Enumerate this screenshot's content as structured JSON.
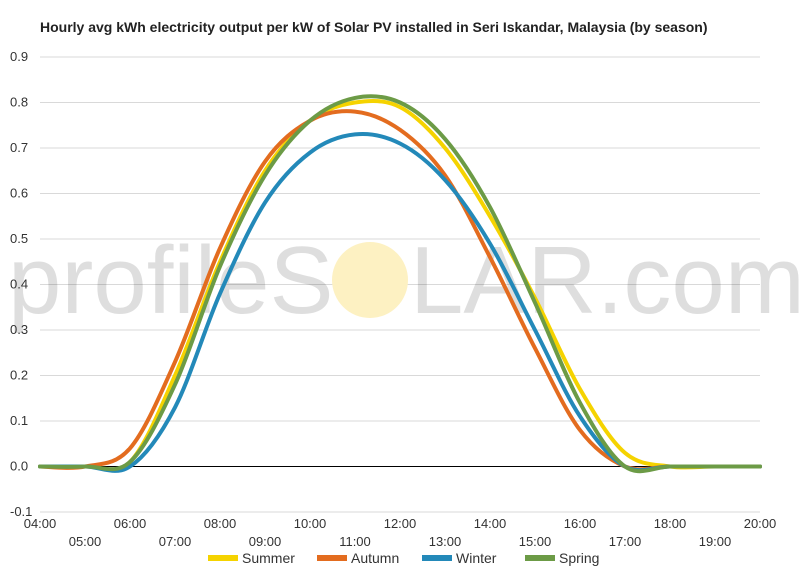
{
  "chart_data": {
    "type": "line",
    "title": "Hourly avg kWh electricity output per kW of Solar PV installed in Seri Iskandar, Malaysia (by season)",
    "xlabel": "",
    "ylabel": "",
    "x": [
      4,
      5,
      6,
      7,
      8,
      9,
      10,
      11,
      12,
      13,
      14,
      15,
      16,
      17,
      18,
      19,
      20
    ],
    "x_ticks_top": [
      "04:00",
      "06:00",
      "08:00",
      "10:00",
      "12:00",
      "14:00",
      "16:00",
      "18:00",
      "20:00"
    ],
    "x_ticks_bottom": [
      "05:00",
      "07:00",
      "09:00",
      "11:00",
      "13:00",
      "15:00",
      "17:00",
      "19:00"
    ],
    "ylim": [
      -0.1,
      0.9
    ],
    "y_ticks": [
      "0.9",
      "0.8",
      "0.7",
      "0.6",
      "0.5",
      "0.4",
      "0.3",
      "0.2",
      "0.1",
      "0.0",
      "-0.1"
    ],
    "grid": true,
    "legend_position": "bottom",
    "series": [
      {
        "name": "Summer",
        "color": "#f5d300",
        "values": [
          0.0,
          0.0,
          0.01,
          0.2,
          0.45,
          0.65,
          0.76,
          0.8,
          0.79,
          0.7,
          0.55,
          0.37,
          0.17,
          0.03,
          0.0,
          0.0,
          0.0
        ]
      },
      {
        "name": "Autumn",
        "color": "#e36c1f",
        "values": [
          0.0,
          0.0,
          0.04,
          0.23,
          0.48,
          0.67,
          0.76,
          0.78,
          0.74,
          0.64,
          0.46,
          0.26,
          0.08,
          0.0,
          0.0,
          0.0,
          0.0
        ]
      },
      {
        "name": "Winter",
        "color": "#2389b9",
        "values": [
          0.0,
          0.0,
          0.0,
          0.13,
          0.38,
          0.58,
          0.69,
          0.73,
          0.71,
          0.63,
          0.49,
          0.3,
          0.11,
          0.0,
          0.0,
          0.0,
          0.0
        ]
      },
      {
        "name": "Spring",
        "color": "#6c9b46",
        "values": [
          0.0,
          0.0,
          0.01,
          0.18,
          0.44,
          0.64,
          0.76,
          0.81,
          0.8,
          0.72,
          0.57,
          0.36,
          0.14,
          0.0,
          0.0,
          0.0,
          0.0
        ]
      }
    ]
  },
  "watermark": {
    "text_left": "profileS",
    "text_right": "LAR.com",
    "sun_color": "#fdf1c2"
  }
}
